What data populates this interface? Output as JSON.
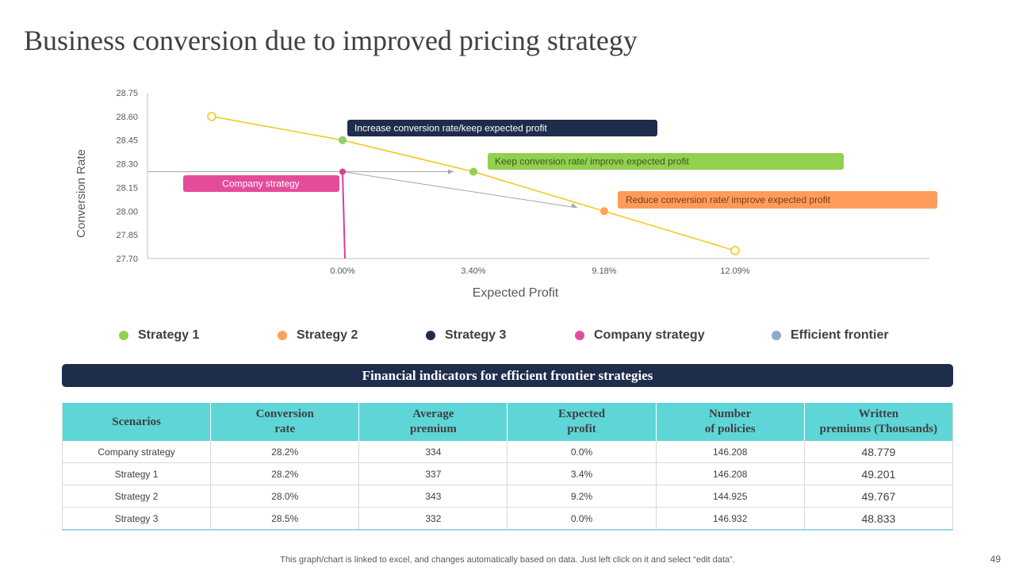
{
  "title": "Business conversion due to improved pricing strategy",
  "chart_data": {
    "type": "scatter",
    "xlabel": "Expected Profit",
    "ylabel": "Conversion Rate",
    "ylim": [
      27.7,
      28.75
    ],
    "y_ticks": [
      "28.75",
      "28.60",
      "28.45",
      "28.30",
      "28.15",
      "28.00",
      "27.85",
      "27.70"
    ],
    "x_ticks": [
      "0.00%",
      "3.40%",
      "9.18%",
      "12.09%"
    ],
    "series": [
      {
        "name": "Efficient frontier",
        "color": "#f5c518",
        "x": [
          "-",
          "0.00%",
          "3.40%",
          "9.18%",
          "12.09%"
        ],
        "y": [
          28.6,
          28.45,
          28.25,
          28.0,
          27.75
        ]
      },
      {
        "name": "Strategy 1",
        "color": "#92d050",
        "x": [
          "3.40%"
        ],
        "y": [
          28.25
        ]
      },
      {
        "name": "Strategy 2",
        "color": "#ffa15a",
        "x": [
          "9.18%"
        ],
        "y": [
          28.0
        ]
      },
      {
        "name": "Strategy 3",
        "color": "#8fcf6d",
        "x": [
          "0.00%"
        ],
        "y": [
          28.45
        ]
      },
      {
        "name": "Company strategy",
        "color": "#d6408f",
        "x": [
          "0.00%"
        ],
        "y": [
          28.25
        ]
      }
    ],
    "annotations": [
      {
        "text": "Increase conversion  rate/keep expected profit",
        "color": "#1f2d4d",
        "text_color": "#ffffff"
      },
      {
        "text": "Keep conversion  rate/ improve  expected profit",
        "color": "#92d050",
        "text_color": "#3b5a1a"
      },
      {
        "text": "Reduce conversion  rate/ improve  expected profit",
        "color": "#ff9c5b",
        "text_color": "#7a3b10"
      },
      {
        "text": "Company strategy",
        "color": "#e44c9a",
        "text_color": "#ffffff"
      }
    ]
  },
  "legend": [
    {
      "label": "Strategy 1",
      "color": "#92d050"
    },
    {
      "label": "Strategy 2",
      "color": "#ffa15a"
    },
    {
      "label": "Strategy 3",
      "color": "#1f2d4d"
    },
    {
      "label": "Company strategy",
      "color": "#e44c9a"
    },
    {
      "label": "Efficient frontier",
      "color": "#8fa8d0"
    }
  ],
  "table": {
    "banner": "Financial indicators for efficient frontier strategies",
    "headers": [
      "Scenarios",
      "Conversion\nrate",
      "Average\npremium",
      "Expected\nprofit",
      "Number\nof  policies",
      "Written\npremiums (Thousands)"
    ],
    "rows": [
      [
        "Company strategy",
        "28.2%",
        "334",
        "0.0%",
        "146.208",
        "48.779"
      ],
      [
        "Strategy 1",
        "28.2%",
        "337",
        "3.4%",
        "146.208",
        "49.201"
      ],
      [
        "Strategy 2",
        "28.0%",
        "343",
        "9.2%",
        "144.925",
        "49.767"
      ],
      [
        "Strategy 3",
        "28.5%",
        "332",
        "0.0%",
        "146.932",
        "48.833"
      ]
    ]
  },
  "footnote": "This graph/chart is linked to excel,  and changes automatically based on data. Just left click on it and select “edit data”.",
  "page_number": "49"
}
